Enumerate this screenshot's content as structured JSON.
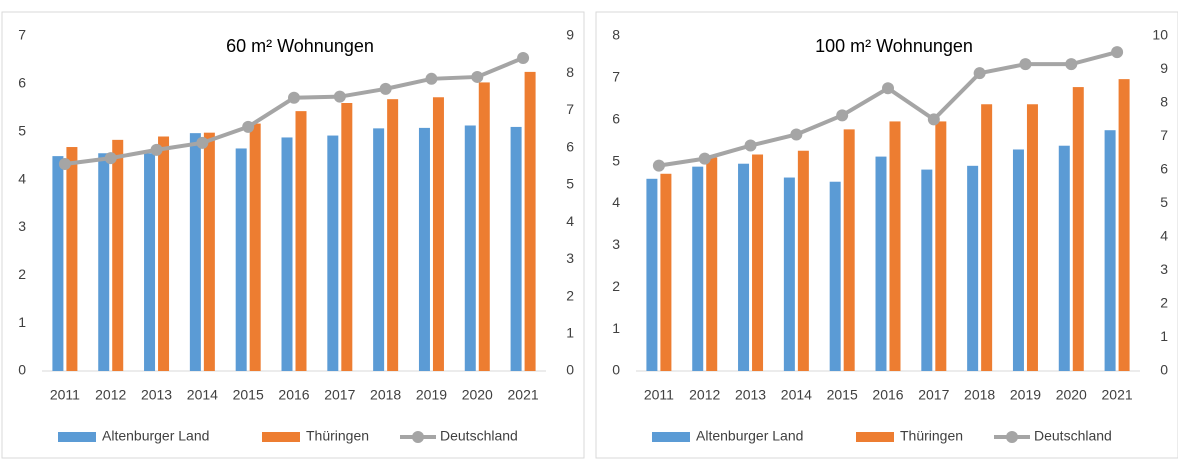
{
  "chart_data": [
    {
      "type": "bar",
      "title": "60 m² Wohnungen",
      "categories": [
        "2011",
        "2012",
        "2013",
        "2014",
        "2015",
        "2016",
        "2017",
        "2018",
        "2019",
        "2020",
        "2021"
      ],
      "series": [
        {
          "name": "Altenburger Land",
          "color": "#5b9bd5",
          "values": [
            4.49,
            4.55,
            4.55,
            4.97,
            4.65,
            4.88,
            4.92,
            5.07,
            5.08,
            5.13,
            5.1
          ]
        },
        {
          "name": "Thüringen",
          "color": "#ed7d31",
          "values": [
            4.68,
            4.83,
            4.9,
            4.98,
            5.17,
            5.43,
            5.6,
            5.68,
            5.72,
            6.03,
            6.25
          ]
        },
        {
          "name": "Deutschland",
          "color": "#a5a5a5",
          "type": "line",
          "axis": "y2",
          "values": [
            5.56,
            5.72,
            5.94,
            6.13,
            6.56,
            7.34,
            7.37,
            7.58,
            7.85,
            7.9,
            8.41
          ]
        }
      ],
      "ylim": [
        0,
        7
      ],
      "yticks": [
        0,
        1,
        2,
        3,
        4,
        5,
        6,
        7
      ],
      "y2lim": [
        0,
        9
      ],
      "y2ticks": [
        0,
        1,
        2,
        3,
        4,
        5,
        6,
        7,
        8,
        9
      ],
      "legend": "bottom",
      "grid": false
    },
    {
      "type": "bar",
      "title": "100 m² Wohnungen",
      "categories": [
        "2011",
        "2012",
        "2013",
        "2014",
        "2015",
        "2016",
        "2017",
        "2018",
        "2019",
        "2020",
        "2021"
      ],
      "series": [
        {
          "name": "Altenburger Land",
          "color": "#5b9bd5",
          "values": [
            4.59,
            4.88,
            4.95,
            4.62,
            4.52,
            5.12,
            4.81,
            4.9,
            5.29,
            5.38,
            5.75
          ]
        },
        {
          "name": "Thüringen",
          "color": "#ed7d31",
          "values": [
            4.71,
            5.1,
            5.17,
            5.26,
            5.77,
            5.96,
            5.96,
            6.37,
            6.37,
            6.78,
            6.97
          ]
        },
        {
          "name": "Deutschland",
          "color": "#a5a5a5",
          "type": "line",
          "axis": "y2",
          "values": [
            6.13,
            6.34,
            6.73,
            7.06,
            7.63,
            8.44,
            7.51,
            8.89,
            9.16,
            9.16,
            9.52
          ]
        }
      ],
      "ylim": [
        0,
        8
      ],
      "yticks": [
        0,
        1,
        2,
        3,
        4,
        5,
        6,
        7,
        8
      ],
      "y2lim": [
        0,
        10
      ],
      "y2ticks": [
        0,
        1,
        2,
        3,
        4,
        5,
        6,
        7,
        8,
        9,
        10
      ],
      "legend": "bottom",
      "grid": false
    }
  ]
}
